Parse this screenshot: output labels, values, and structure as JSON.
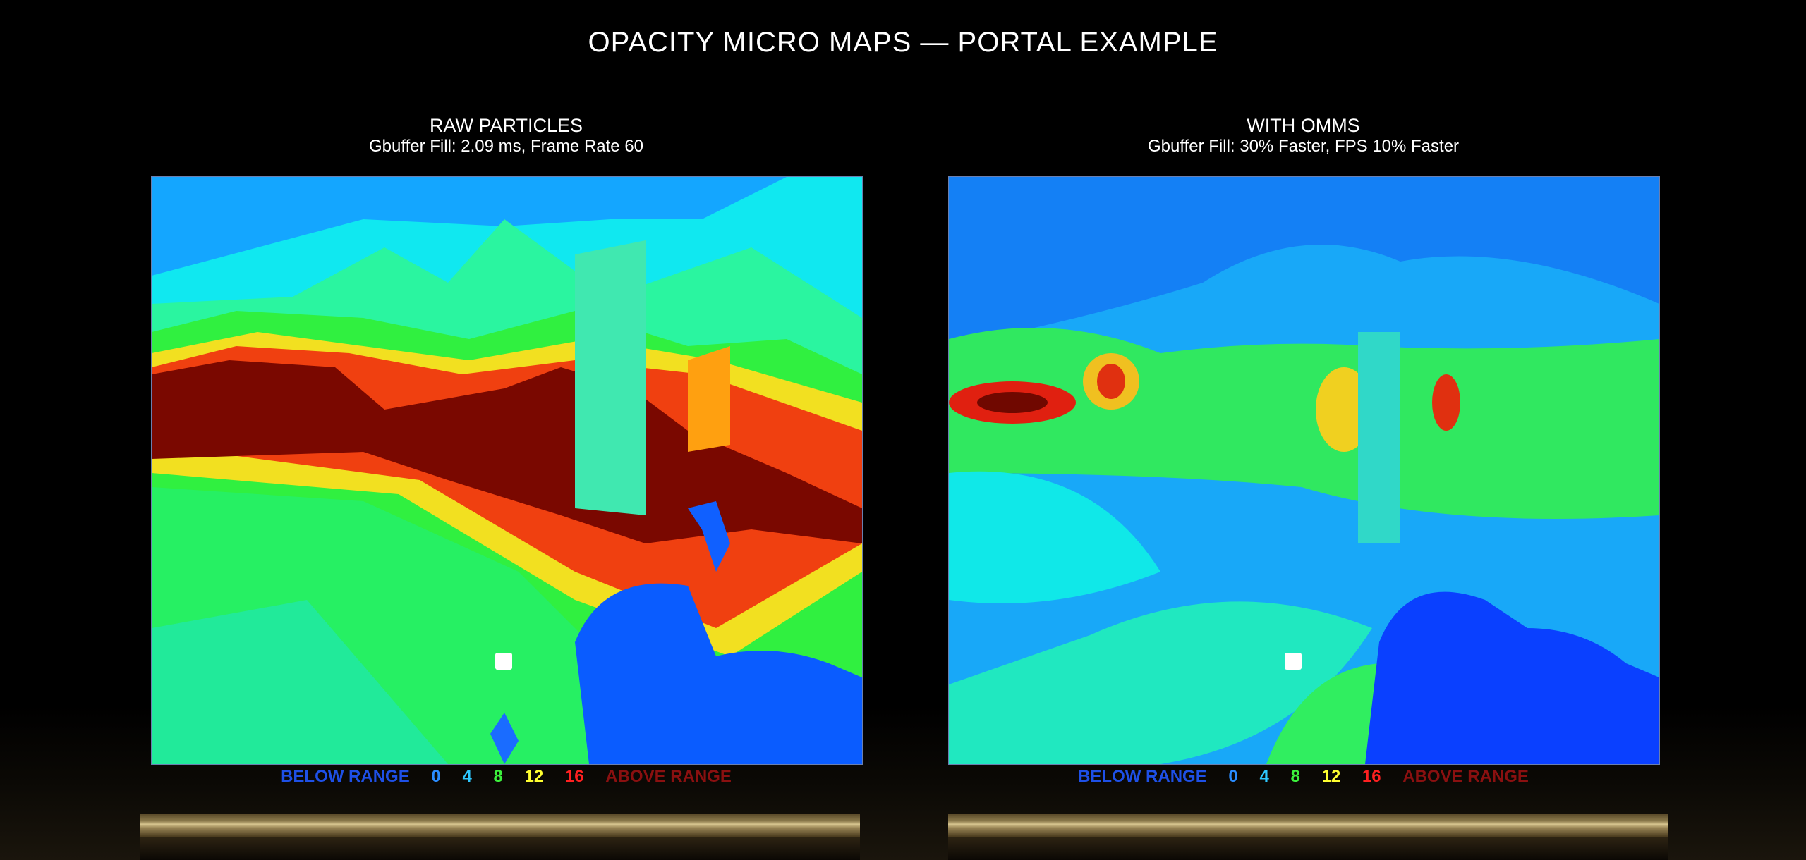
{
  "title": "OPACITY MICRO MAPS — PORTAL EXAMPLE",
  "panels": [
    {
      "heading": "RAW PARTICLES",
      "subtitle": "Gbuffer Fill: 2.09 ms, Frame Rate 60"
    },
    {
      "heading": "WITH OMMS",
      "subtitle": "Gbuffer Fill: 30% Faster, FPS 10% Faster"
    }
  ],
  "legend": {
    "below": "BELOW RANGE",
    "ticks": [
      "0",
      "4",
      "8",
      "12",
      "16"
    ],
    "above": "ABOVE RANGE",
    "colors": {
      "below": "#1e50e6",
      "0": "#2a8cff",
      "4": "#2ec8ff",
      "8": "#3cf03c",
      "12": "#ffff30",
      "16": "#ff2020",
      "above": "#8a1010"
    }
  }
}
